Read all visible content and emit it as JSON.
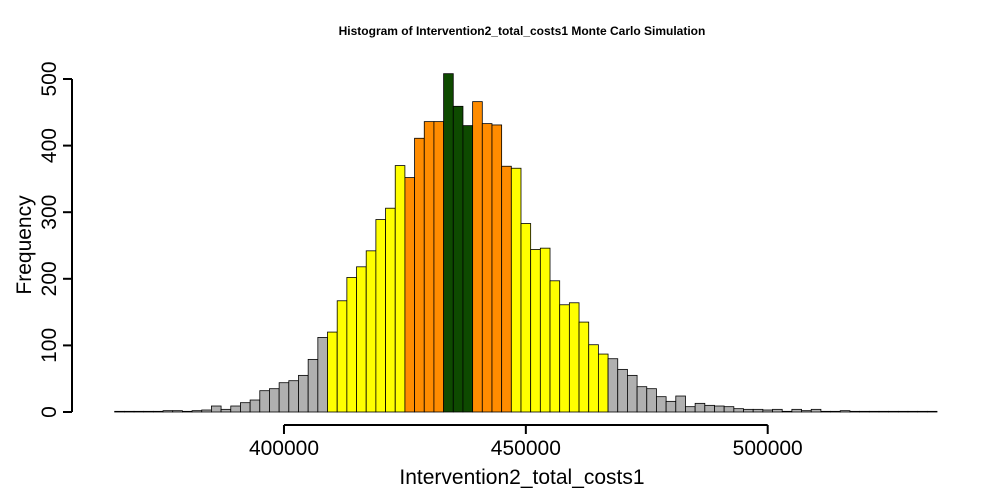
{
  "chart_data": {
    "type": "bar",
    "title": "Histogram of  Intervention2_total_costs1  Monte Carlo Simulation",
    "xlabel": "Intervention2_total_costs1",
    "ylabel": "Frequency",
    "xlim": [
      363000,
      535000
    ],
    "ylim": [
      0,
      500
    ],
    "x_ticks": [
      400000,
      450000,
      500000
    ],
    "x_tick_labels": [
      "400000",
      "450000",
      "500000"
    ],
    "y_ticks": [
      0,
      100,
      200,
      300,
      400,
      500
    ],
    "y_tick_labels": [
      "0",
      "100",
      "200",
      "300",
      "400",
      "500"
    ],
    "bin_start": 365000,
    "bin_width": 2000,
    "values": [
      1,
      1,
      1,
      1,
      1,
      2,
      2,
      1,
      2,
      3,
      9,
      4,
      9,
      14,
      18,
      32,
      35,
      44,
      47,
      55,
      79,
      112,
      120,
      167,
      202,
      218,
      242,
      289,
      306,
      370,
      352,
      411,
      436,
      436,
      508,
      459,
      430,
      466,
      433,
      431,
      369,
      366,
      283,
      244,
      246,
      197,
      161,
      164,
      135,
      101,
      87,
      80,
      64,
      55,
      38,
      35,
      23,
      16,
      24,
      8,
      13,
      10,
      9,
      8,
      5,
      4,
      4,
      3,
      4,
      1,
      4,
      2,
      4,
      1,
      1,
      2,
      1,
      1,
      1,
      1,
      1,
      1,
      1,
      1,
      1
    ],
    "band_colors": {
      "outer": "#b0b0b0",
      "middle": "#ffff00",
      "inner": "#ff8c00",
      "core": "#0e4a00"
    },
    "bands": [
      {
        "color": "outer",
        "from": 365000,
        "to": 409000
      },
      {
        "color": "middle",
        "from": 409000,
        "to": 425000
      },
      {
        "color": "inner",
        "from": 425000,
        "to": 433000
      },
      {
        "color": "core",
        "from": 433000,
        "to": 439000
      },
      {
        "color": "inner",
        "from": 439000,
        "to": 447000
      },
      {
        "color": "middle",
        "from": 447000,
        "to": 467000
      },
      {
        "color": "outer",
        "from": 467000,
        "to": 535000
      }
    ],
    "grid": false,
    "legend": "none"
  }
}
